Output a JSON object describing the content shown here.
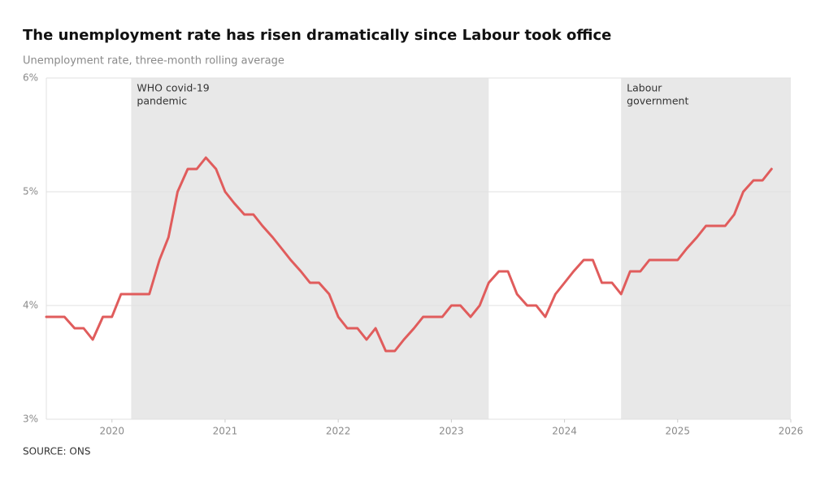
{
  "chart_data": {
    "type": "line",
    "title": "The unemployment rate has risen dramatically since Labour took office",
    "subtitle": "Unemployment rate, three-month rolling average",
    "source": "SOURCE: ONS",
    "x": [
      2019.42,
      2019.5,
      2019.58,
      2019.67,
      2019.75,
      2019.83,
      2019.92,
      2020,
      2020.08,
      2020.17,
      2020.25,
      2020.33,
      2020.42,
      2020.5,
      2020.58,
      2020.67,
      2020.75,
      2020.83,
      2020.92,
      2021,
      2021.08,
      2021.17,
      2021.25,
      2021.33,
      2021.42,
      2021.5,
      2021.58,
      2021.67,
      2021.75,
      2021.83,
      2021.92,
      2022,
      2022.08,
      2022.17,
      2022.25,
      2022.33,
      2022.42,
      2022.5,
      2022.58,
      2022.67,
      2022.75,
      2022.83,
      2022.92,
      2023,
      2023.08,
      2023.17,
      2023.25,
      2023.33,
      2023.42,
      2023.5,
      2023.58,
      2023.67,
      2023.75,
      2023.83,
      2023.92,
      2024,
      2024.08,
      2024.17,
      2024.25,
      2024.33,
      2024.42,
      2024.5,
      2024.58,
      2024.67,
      2024.75,
      2024.83,
      2024.92,
      2025,
      2025.08,
      2025.17,
      2025.25,
      2025.33,
      2025.42,
      2025.5,
      2025.58,
      2025.67,
      2025.75,
      2025.83
    ],
    "series": [
      {
        "name": "Unemployment rate",
        "color": "#e05c5c",
        "values": [
          3.9,
          3.9,
          3.9,
          3.8,
          3.8,
          3.7,
          3.9,
          3.9,
          4.1,
          4.1,
          4.1,
          4.1,
          4.4,
          4.6,
          5.0,
          5.2,
          5.2,
          5.3,
          5.2,
          5.0,
          4.9,
          4.8,
          4.8,
          4.7,
          4.6,
          4.5,
          4.4,
          4.3,
          4.2,
          4.2,
          4.1,
          3.9,
          3.8,
          3.8,
          3.7,
          3.8,
          3.6,
          3.6,
          3.7,
          3.8,
          3.9,
          3.9,
          3.9,
          4.0,
          4.0,
          3.9,
          4.0,
          4.2,
          4.3,
          4.3,
          4.1,
          4.0,
          4.0,
          3.9,
          4.1,
          4.2,
          4.3,
          4.4,
          4.4,
          4.2,
          4.2,
          4.1,
          4.3,
          4.3,
          4.4,
          4.4,
          4.4,
          4.4,
          4.5,
          4.6,
          4.7,
          4.7,
          4.7,
          4.8,
          5.0,
          5.1,
          5.1,
          5.2
        ]
      }
    ],
    "shaded": [
      {
        "lines": [
          "WHO covid-19",
          "pandemic"
        ],
        "start": 2020.17,
        "end": 2023.33
      },
      {
        "lines": [
          "Labour",
          "government"
        ],
        "start": 2024.5,
        "end": 2026
      }
    ],
    "xlim": [
      2019.42,
      2026
    ],
    "xticks": [
      2020,
      2021,
      2022,
      2023,
      2024,
      2025,
      2026
    ],
    "ylim": [
      3,
      6
    ],
    "yticks": [
      {
        "value": 3,
        "label": "3%"
      },
      {
        "value": 4,
        "label": "4%"
      },
      {
        "value": 5,
        "label": "5%"
      },
      {
        "value": 6,
        "label": "6%"
      }
    ],
    "grid": true
  }
}
